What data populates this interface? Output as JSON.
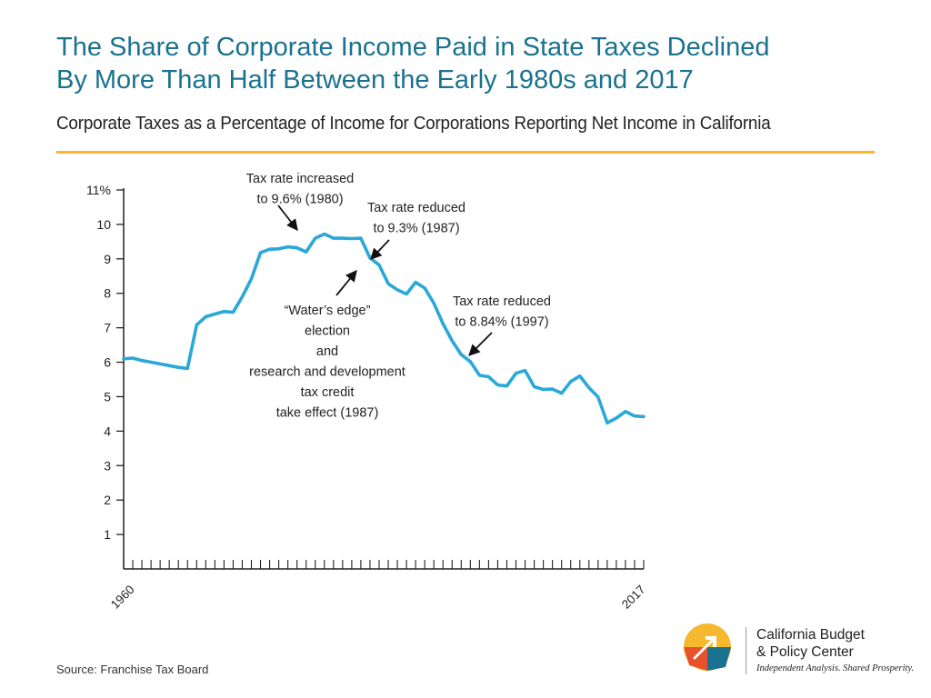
{
  "title_line1": "The Share of Corporate Income Paid in State Taxes Declined",
  "title_line2": "By More Than Half Between the Early 1980s and 2017",
  "subtitle": "Corporate Taxes as a Percentage of Income for Corporations Reporting Net Income in California",
  "source": "Source: Franchise Tax Board",
  "logo": {
    "name_line1": "California Budget",
    "name_line2": "& Policy Center",
    "tagline": "Independent Analysis. Shared Prosperity."
  },
  "colors": {
    "line": "#2aa8d8",
    "title": "#1a7290",
    "rule": "#f5b82e"
  },
  "chart_data": {
    "type": "line",
    "x_start": 1960,
    "x_end": 2017,
    "xtick_labels": [
      "1960",
      "2017"
    ],
    "ylim": [
      0,
      11
    ],
    "ytick_labels": [
      "1",
      "2",
      "3",
      "4",
      "5",
      "6",
      "7",
      "8",
      "9",
      "10",
      "11%"
    ],
    "series": [
      {
        "x": [
          1960,
          1961,
          1962,
          1963,
          1964,
          1965,
          1966,
          1967,
          1968,
          1969,
          1970,
          1971,
          1972,
          1973,
          1974,
          1975,
          1976,
          1977,
          1978,
          1979,
          1980,
          1981,
          1982,
          1983,
          1984,
          1985,
          1986,
          1987,
          1988,
          1989,
          1990,
          1991,
          1992,
          1993,
          1994,
          1995,
          1996,
          1997,
          1998,
          1999,
          2000,
          2001,
          2002,
          2003,
          2004,
          2005,
          2006,
          2007,
          2008,
          2009,
          2010,
          2011,
          2012,
          2013,
          2014,
          2015,
          2016,
          2017
        ],
        "y": [
          6.1,
          6.12,
          6.05,
          6.0,
          5.95,
          5.9,
          5.85,
          5.82,
          7.08,
          7.32,
          7.4,
          7.47,
          7.45,
          7.9,
          8.42,
          9.18,
          9.28,
          9.29,
          9.35,
          9.32,
          9.2,
          9.6,
          9.72,
          9.6,
          9.6,
          9.59,
          9.6,
          9.03,
          8.82,
          8.28,
          8.1,
          7.98,
          8.32,
          8.15,
          7.71,
          7.12,
          6.62,
          6.22,
          6.02,
          5.62,
          5.58,
          5.34,
          5.31,
          5.68,
          5.76,
          5.29,
          5.21,
          5.22,
          5.1,
          5.44,
          5.6,
          5.26,
          4.99,
          4.24,
          4.38,
          4.57,
          4.44,
          4.42
        ]
      }
    ],
    "annotations": [
      {
        "text_lines": [
          "Tax rate increased",
          "to 9.6% (1980)"
        ],
        "x": 1980,
        "y": 9.6
      },
      {
        "text_lines": [
          "Tax rate reduced",
          "to 9.3% (1987)"
        ],
        "x": 1986.5,
        "y": 9.0
      },
      {
        "text_lines": [
          "“Water’s edge”",
          "election",
          "and",
          "research and development",
          "tax credit",
          "take effect (1987)"
        ],
        "x": 1985.8,
        "y": 8.7
      },
      {
        "text_lines": [
          "Tax rate reduced",
          "to 8.84% (1997)"
        ],
        "x": 1996.2,
        "y": 5.8
      }
    ]
  }
}
